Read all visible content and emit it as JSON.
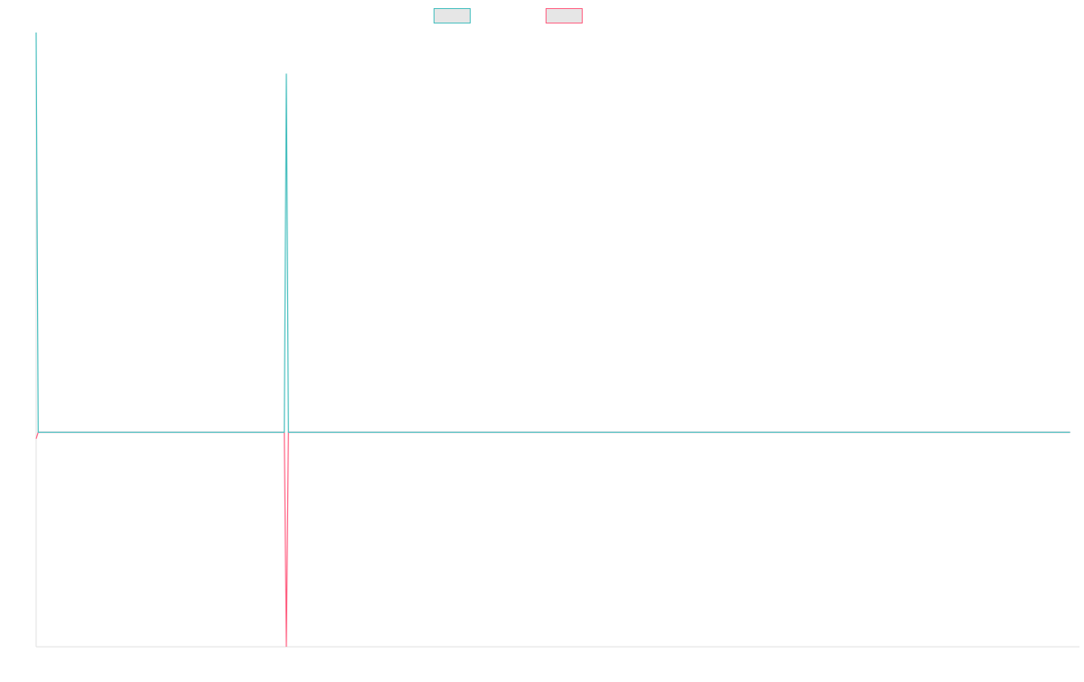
{
  "chart_data": {
    "type": "line",
    "title": "",
    "xlabel": "",
    "ylabel": "",
    "grid": false,
    "legend_position": "top-center",
    "x_count": 1001,
    "ylim": [
      -1,
      1.9
    ],
    "colors": {
      "series_a": "#4bc0c0",
      "series_b": "#ff6384",
      "legend_fill": "#e6e6e6",
      "axis": "#e0e0e0"
    },
    "series": [
      {
        "name": "",
        "color_key": "series_a",
        "points": [
          [
            0,
            1.83
          ],
          [
            2,
            0.0
          ],
          [
            240,
            0.0
          ],
          [
            242,
            1.64
          ],
          [
            244,
            0.0
          ],
          [
            1000,
            0.0
          ]
        ]
      },
      {
        "name": "",
        "color_key": "series_b",
        "points": [
          [
            0,
            -0.03
          ],
          [
            2,
            0.0
          ],
          [
            240,
            0.0
          ],
          [
            242,
            -0.98
          ],
          [
            244,
            0.0
          ],
          [
            1000,
            0.0
          ]
        ]
      }
    ]
  }
}
